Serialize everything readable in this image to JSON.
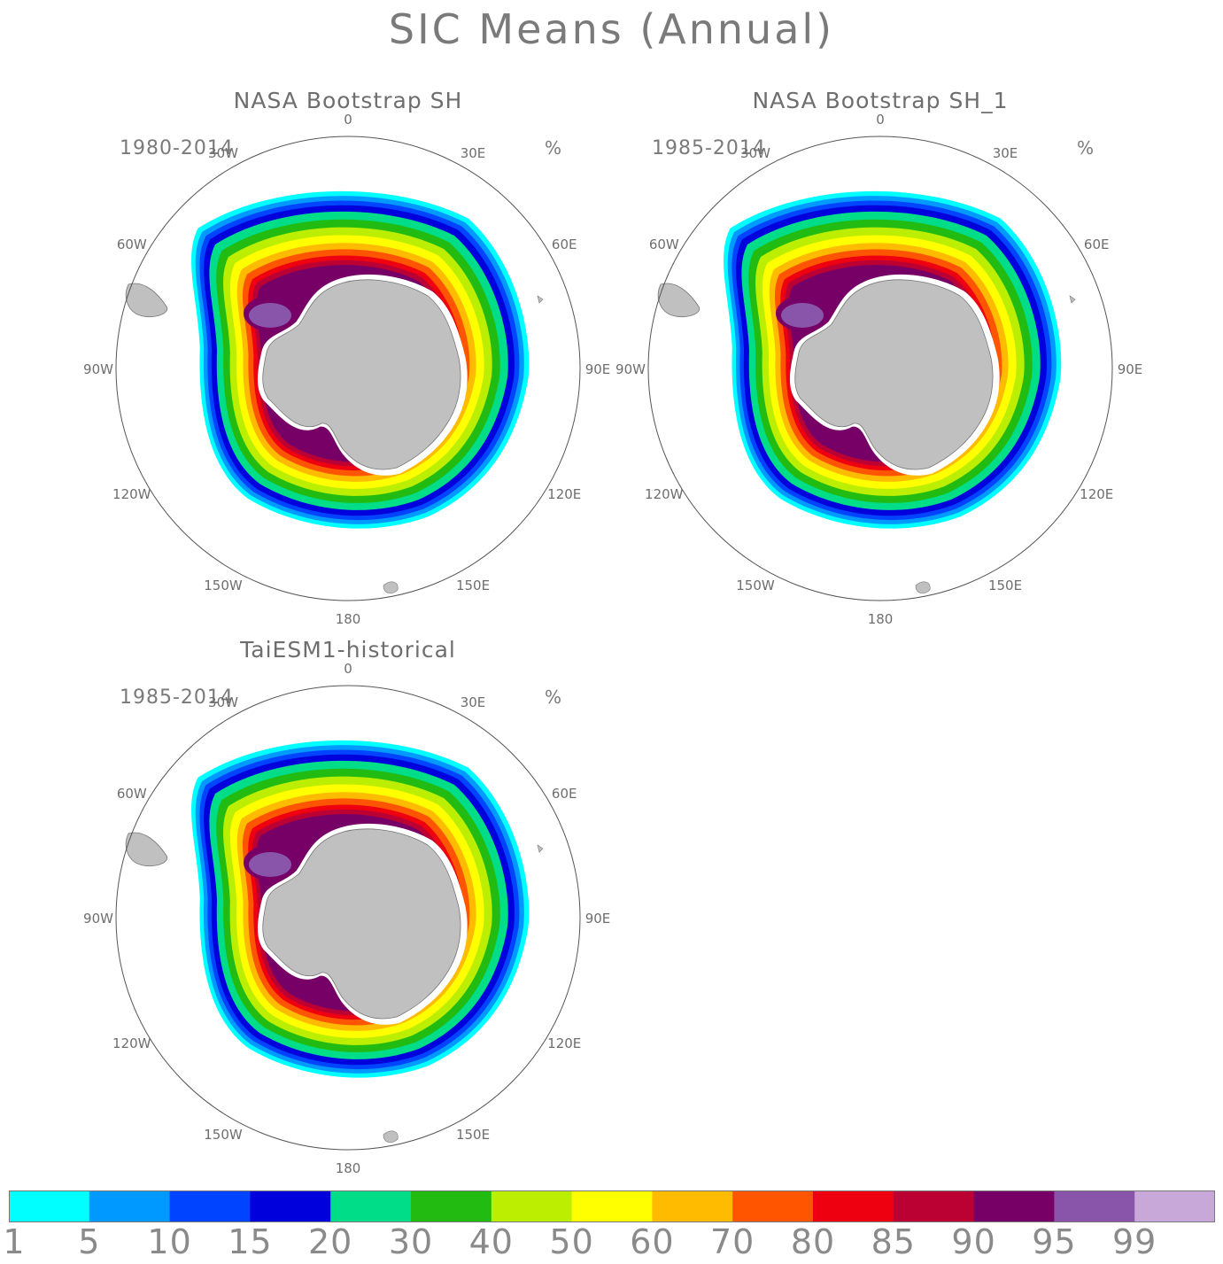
{
  "title": "SIC Means (Annual)",
  "units": "%",
  "lon_labels": [
    "0",
    "30E",
    "60E",
    "90E",
    "120E",
    "150E",
    "180",
    "150W",
    "120W",
    "90W",
    "60W",
    "30W"
  ],
  "panels": [
    {
      "id": "nasa-bootstrap-sh",
      "title": "NASA Bootstrap SH",
      "period": "1980-2014",
      "units": "%"
    },
    {
      "id": "nasa-bootstrap-sh-1",
      "title": "NASA Bootstrap SH_1",
      "period": "1985-2014",
      "units": "%"
    },
    {
      "id": "taiesm1-historical",
      "title": "TaiESM1-historical",
      "period": "1985-2014",
      "units": "%"
    }
  ],
  "legend": {
    "labels": [
      "1",
      "5",
      "10",
      "15",
      "20",
      "30",
      "40",
      "50",
      "60",
      "70",
      "80",
      "85",
      "90",
      "95",
      "99"
    ],
    "colors": [
      "#00ffff",
      "#0099ff",
      "#0044ff",
      "#0000dd",
      "#00dd88",
      "#22bb11",
      "#bbee00",
      "#ffff00",
      "#ffbb00",
      "#ff5500",
      "#ee0011",
      "#bb0033",
      "#770066",
      "#8855aa",
      "#c8a8d8"
    ]
  },
  "land_color": "#c0c0c0"
}
